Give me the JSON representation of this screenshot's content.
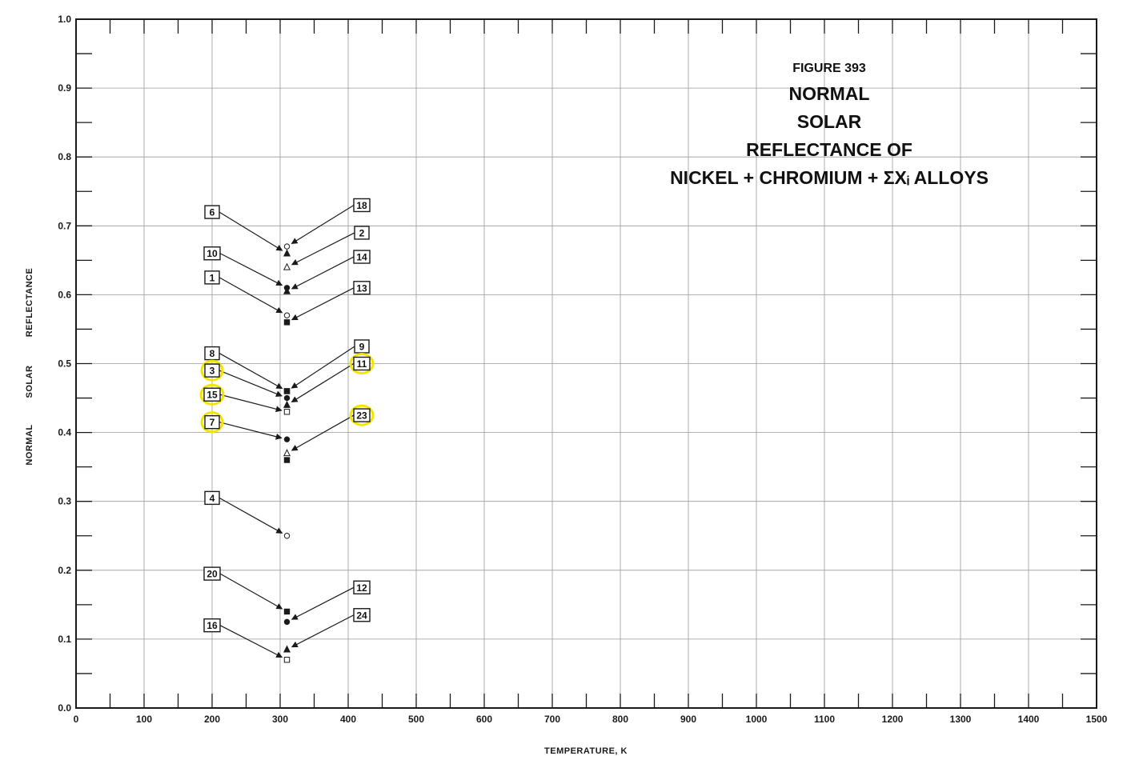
{
  "chart_data": {
    "type": "scatter",
    "title_lines": [
      "FIGURE 393",
      "NORMAL",
      "SOLAR",
      "REFLECTANCE OF",
      "NICKEL + CHROMIUM + ΣXᵢ ALLOYS"
    ],
    "xlabel": "TEMPERATURE, K",
    "ylabel_words": [
      "NORMAL",
      "SOLAR",
      "REFLECTANCE"
    ],
    "xlim": [
      0,
      1500
    ],
    "ylim": [
      0.0,
      1.0
    ],
    "x_ticks": [
      "0",
      "100",
      "200",
      "300",
      "400",
      "500",
      "600",
      "700",
      "800",
      "900",
      "1000",
      "1100",
      "1200",
      "1300",
      "1400",
      "1500"
    ],
    "y_ticks": [
      "0.0",
      "0.1",
      "0.2",
      "0.3",
      "0.4",
      "0.5",
      "0.6",
      "0.7",
      "0.8",
      "0.9",
      "1.0"
    ],
    "grid": true,
    "points": [
      {
        "label": "6",
        "x": 310,
        "y": 0.66,
        "marker": "filled-triangle",
        "side": "left",
        "label_y": 0.72,
        "highlight": false
      },
      {
        "label": "18",
        "x": 310,
        "y": 0.67,
        "marker": "open-circle",
        "side": "right",
        "label_y": 0.73,
        "highlight": false
      },
      {
        "label": "2",
        "x": 310,
        "y": 0.64,
        "marker": "open-triangle",
        "side": "right",
        "label_y": 0.69,
        "highlight": false
      },
      {
        "label": "10",
        "x": 310,
        "y": 0.61,
        "marker": "filled-circle",
        "side": "left",
        "label_y": 0.66,
        "highlight": false
      },
      {
        "label": "14",
        "x": 310,
        "y": 0.605,
        "marker": "filled-triangle",
        "side": "right",
        "label_y": 0.655,
        "highlight": false
      },
      {
        "label": "1",
        "x": 310,
        "y": 0.57,
        "marker": "open-circle",
        "side": "left",
        "label_y": 0.625,
        "highlight": false
      },
      {
        "label": "13",
        "x": 310,
        "y": 0.56,
        "marker": "filled-square",
        "side": "right",
        "label_y": 0.61,
        "highlight": false
      },
      {
        "label": "8",
        "x": 310,
        "y": 0.46,
        "marker": "filled-square",
        "side": "left",
        "label_y": 0.515,
        "highlight": false
      },
      {
        "label": "9",
        "x": 310,
        "y": 0.46,
        "marker": "filled-square",
        "side": "right",
        "label_y": 0.525,
        "highlight": false
      },
      {
        "label": "3",
        "x": 310,
        "y": 0.45,
        "marker": "filled-circle",
        "side": "left",
        "label_y": 0.49,
        "highlight": true
      },
      {
        "label": "11",
        "x": 310,
        "y": 0.44,
        "marker": "filled-triangle",
        "side": "right",
        "label_y": 0.5,
        "highlight": true
      },
      {
        "label": "15",
        "x": 310,
        "y": 0.43,
        "marker": "open-square",
        "side": "left",
        "label_y": 0.455,
        "highlight": true
      },
      {
        "label": "7",
        "x": 310,
        "y": 0.39,
        "marker": "filled-circle",
        "side": "left",
        "label_y": 0.415,
        "highlight": true
      },
      {
        "label": "23",
        "x": 310,
        "y": 0.37,
        "marker": "open-triangle",
        "side": "right",
        "label_y": 0.425,
        "highlight": true
      },
      {
        "label": "",
        "x": 310,
        "y": 0.36,
        "marker": "filled-square",
        "side": "none",
        "label_y": 0.36,
        "highlight": false
      },
      {
        "label": "4",
        "x": 310,
        "y": 0.25,
        "marker": "open-circle",
        "side": "left",
        "label_y": 0.305,
        "highlight": false
      },
      {
        "label": "20",
        "x": 310,
        "y": 0.14,
        "marker": "filled-square",
        "side": "left",
        "label_y": 0.195,
        "highlight": false
      },
      {
        "label": "12",
        "x": 310,
        "y": 0.125,
        "marker": "filled-circle",
        "side": "right",
        "label_y": 0.175,
        "highlight": false
      },
      {
        "label": "16",
        "x": 310,
        "y": 0.07,
        "marker": "open-square",
        "side": "left",
        "label_y": 0.12,
        "highlight": false
      },
      {
        "label": "24",
        "x": 310,
        "y": 0.085,
        "marker": "filled-triangle",
        "side": "right",
        "label_y": 0.135,
        "highlight": false
      }
    ],
    "label_x": {
      "left": 200,
      "right": 420
    },
    "colors": {
      "ink": "#1a1a1a",
      "grid": "#9a9a9a",
      "highlight": "#f2e600"
    }
  }
}
